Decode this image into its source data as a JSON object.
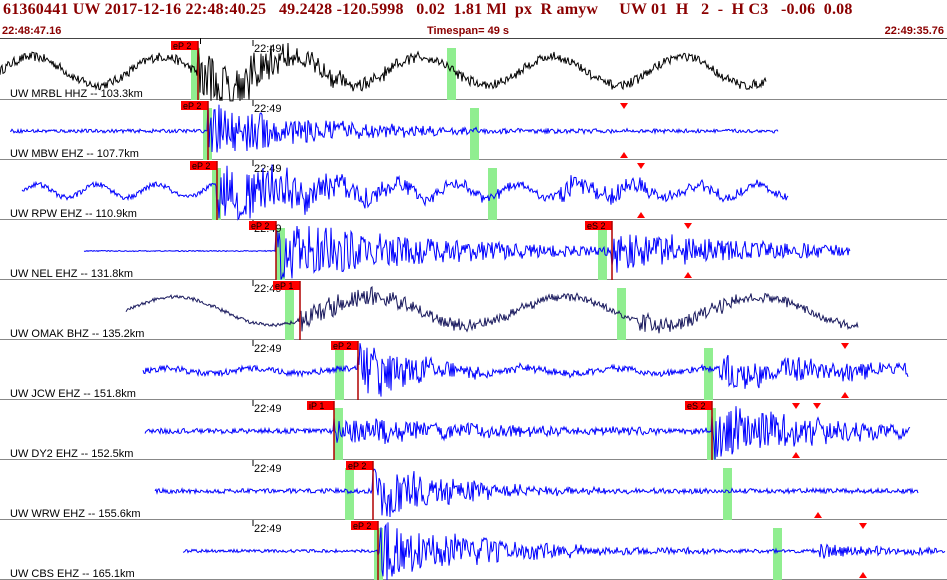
{
  "header": {
    "title": "61360441 UW 2017-12-16 22:48:40.25   49.2428 -120.5998   0.02  1.81 Ml  px  R amyw     UW 01  H   2  -  H C3   -0.06  0.08",
    "start_time": "22:48:47.16",
    "timespan": "Timespan=  49 s",
    "end_time": "22:49:35.76"
  },
  "colors": {
    "header_text": "#8b0000",
    "trace_default": "#0000ff",
    "trace_black": "#000000",
    "trace_navy": "#1a1a5e",
    "pick_box": "#ff0000",
    "pick_line": "#b00000",
    "green_band": "#90ee90",
    "marker": "#ff0000",
    "separator": "#888888"
  },
  "minute_label": "22:49",
  "traces": [
    {
      "label": "UW MRBL HHZ -- 103.3km",
      "color": "black",
      "start": 0,
      "end": 766,
      "noise": 0.18,
      "wave_amp": 0.55,
      "wave_period": 130,
      "picks": [
        {
          "label": "eP 2",
          "x": 198,
          "is_s": false
        }
      ],
      "green": [
        195,
        451
      ],
      "markers": [],
      "bursts": [
        {
          "x": 198,
          "amp": 1.0,
          "dur": 95
        }
      ]
    },
    {
      "label": "UW MBW EHZ -- 107.7km",
      "color": "blue",
      "start": 10,
      "end": 778,
      "noise": 0.07,
      "wave_amp": 0,
      "wave_period": 100,
      "picks": [
        {
          "label": "eP 2",
          "x": 208,
          "is_s": false
        }
      ],
      "green": [
        207,
        474
      ],
      "markers": [
        {
          "x": 624,
          "dir": "down"
        },
        {
          "x": 624,
          "dir": "up"
        }
      ],
      "bursts": [
        {
          "x": 208,
          "amp": 0.9,
          "dur": 110
        }
      ]
    },
    {
      "label": "UW RPW EHZ -- 110.9km",
      "color": "blue",
      "start": 22,
      "end": 788,
      "noise": 0.1,
      "wave_amp": 0.25,
      "wave_period": 60,
      "picks": [
        {
          "label": "eP 2",
          "x": 217,
          "is_s": false
        }
      ],
      "green": [
        216,
        492
      ],
      "markers": [
        {
          "x": 641,
          "dir": "down"
        },
        {
          "x": 641,
          "dir": "up"
        }
      ],
      "bursts": [
        {
          "x": 217,
          "amp": 1.0,
          "dur": 120
        },
        {
          "x": 560,
          "amp": 0.35,
          "dur": 140
        }
      ]
    },
    {
      "label": "UW NEL EHZ -- 131.8km",
      "color": "blue",
      "start": 84,
      "end": 850,
      "noise": 0.02,
      "wave_amp": 0,
      "wave_period": 100,
      "picks": [
        {
          "label": "eP 2",
          "x": 276,
          "is_s": false
        },
        {
          "label": "eS 2",
          "x": 612,
          "is_s": true
        }
      ],
      "green": [
        280,
        602
      ],
      "markers": [
        {
          "x": 688,
          "dir": "down"
        },
        {
          "x": 688,
          "dir": "up"
        }
      ],
      "bursts": [
        {
          "x": 276,
          "amp": 0.95,
          "dur": 170
        },
        {
          "x": 612,
          "amp": 0.55,
          "dur": 200
        }
      ]
    },
    {
      "label": "UW OMAK BHZ -- 135.2km",
      "color": "navy",
      "start": 126,
      "end": 858,
      "noise": 0.07,
      "wave_amp": 0.55,
      "wave_period": 195,
      "picks": [
        {
          "label": "eP 1",
          "x": 300,
          "is_s": false
        }
      ],
      "green": [
        289,
        621
      ],
      "markers": [],
      "bursts": [
        {
          "x": 300,
          "amp": 0.35,
          "dur": 200
        },
        {
          "x": 640,
          "amp": 0.25,
          "dur": 180
        }
      ]
    },
    {
      "label": "UW JCW EHZ -- 151.8km",
      "color": "blue",
      "start": 143,
      "end": 908,
      "noise": 0.12,
      "wave_amp": 0.1,
      "wave_period": 90,
      "picks": [
        {
          "label": "eP 2",
          "x": 358,
          "is_s": false
        }
      ],
      "green": [
        339,
        708
      ],
      "markers": [
        {
          "x": 845,
          "dir": "down"
        },
        {
          "x": 845,
          "dir": "up"
        }
      ],
      "bursts": [
        {
          "x": 358,
          "amp": 0.95,
          "dur": 60
        },
        {
          "x": 720,
          "amp": 0.45,
          "dur": 190
        }
      ]
    },
    {
      "label": "UW DY2 EHZ -- 152.5km",
      "color": "blue",
      "start": 145,
      "end": 910,
      "noise": 0.1,
      "wave_amp": 0,
      "wave_period": 100,
      "picks": [
        {
          "label": "iP 1",
          "x": 334,
          "is_s": false
        },
        {
          "label": "eS 2",
          "x": 712,
          "is_s": true
        }
      ],
      "green": [
        338,
        711
      ],
      "markers": [
        {
          "x": 796,
          "dir": "down"
        },
        {
          "x": 796,
          "dir": "up"
        },
        {
          "x": 817,
          "dir": "down"
        }
      ],
      "bursts": [
        {
          "x": 334,
          "amp": 0.45,
          "dur": 150
        },
        {
          "x": 712,
          "amp": 0.85,
          "dur": 120
        }
      ]
    },
    {
      "label": "UW WRW EHZ -- 155.6km",
      "color": "blue",
      "start": 155,
      "end": 918,
      "noise": 0.09,
      "wave_amp": 0,
      "wave_period": 100,
      "picks": [
        {
          "label": "eP 2",
          "x": 373,
          "is_s": false
        }
      ],
      "green": [
        349,
        727
      ],
      "markers": [
        {
          "x": 818,
          "dir": "up"
        }
      ],
      "bursts": [
        {
          "x": 373,
          "amp": 0.95,
          "dur": 80
        }
      ]
    },
    {
      "label": "UW CBS EHZ -- 165.1km",
      "color": "blue",
      "start": 183,
      "end": 945,
      "noise": 0.06,
      "wave_amp": 0,
      "wave_period": 100,
      "picks": [
        {
          "label": "eP 2",
          "x": 378,
          "is_s": false
        }
      ],
      "green": [
        378,
        777
      ],
      "markers": [
        {
          "x": 863,
          "dir": "down"
        },
        {
          "x": 863,
          "dir": "up"
        }
      ],
      "bursts": [
        {
          "x": 378,
          "amp": 1.0,
          "dur": 110
        },
        {
          "x": 820,
          "amp": 0.2,
          "dur": 120
        }
      ]
    }
  ]
}
